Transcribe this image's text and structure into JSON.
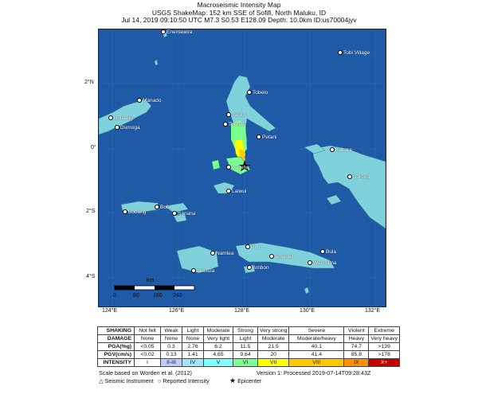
{
  "header": {
    "line1": "Macroseismic Intensity Map",
    "line2": "USGS ShakeMap: 152 km SSE of Sofifi, North Maluku, ID",
    "line3": "Jul 14, 2019 09:10:50 UTC M7.3 S0.53 E128.09 Depth: 10.0km ID:us70004jyv"
  },
  "colors": {
    "ocean": "#1e5aa6",
    "land": "#7fd1db",
    "mmi_I": "#ffffff",
    "mmi_II_III": "#bfccff",
    "mmi_IV": "#a0e6ff",
    "mmi_V": "#80ffff",
    "mmi_VI": "#7aff93",
    "mmi_VII": "#ffff00",
    "mmi_VIII": "#ffc800",
    "mmi_IX": "#ff9100",
    "mmi_X": "#c80000"
  },
  "map": {
    "cities": [
      {
        "name": "Enemawira"
      },
      {
        "name": "Tobi Village"
      },
      {
        "name": "Manado"
      },
      {
        "name": "Bolaang"
      },
      {
        "name": "Dumoga"
      },
      {
        "name": "Tobelo"
      },
      {
        "name": "Jailolo"
      },
      {
        "name": "Ternate"
      },
      {
        "name": "Petani"
      },
      {
        "name": "Kabare"
      },
      {
        "name": "Sorong"
      },
      {
        "name": "Labuha"
      },
      {
        "name": "Laiwui"
      },
      {
        "name": "Bobong"
      },
      {
        "name": "Bofa"
      },
      {
        "name": "Sanana"
      },
      {
        "name": "Piru"
      },
      {
        "name": "Namlea"
      },
      {
        "name": "Amahai"
      },
      {
        "name": "Bula"
      },
      {
        "name": "Ambon"
      },
      {
        "name": "Werinama"
      },
      {
        "name": "Leksula"
      }
    ],
    "lat_labels": [
      "2°N",
      "0°",
      "2°S",
      "4°S"
    ],
    "lon_labels": [
      "124°E",
      "126°E",
      "128°E",
      "130°E",
      "132°E"
    ],
    "scale_unit": "km",
    "scale_ticks": [
      "0",
      "80",
      "160",
      "240"
    ]
  },
  "legend_table": {
    "rows": [
      {
        "label": "SHAKING",
        "cells": [
          "Not felt",
          "Weak",
          "Light",
          "Moderate",
          "Strong",
          "Very strong",
          "Severe",
          "Violent",
          "Extreme"
        ]
      },
      {
        "label": "DAMAGE",
        "cells": [
          "None",
          "None",
          "None",
          "Very light",
          "Light",
          "Moderate",
          "Moderate/heavy",
          "Heavy",
          "Very heavy"
        ]
      },
      {
        "label": "PGA(%g)",
        "cells": [
          "<0.05",
          "0.3",
          "2.76",
          "6.2",
          "11.5",
          "21.5",
          "40.1",
          "74.7",
          ">139"
        ]
      },
      {
        "label": "PGV(cm/s)",
        "cells": [
          "<0.02",
          "0.13",
          "1.41",
          "4.65",
          "9.64",
          "20",
          "41.4",
          "85.8",
          ">178"
        ]
      },
      {
        "label": "INTENSITY",
        "cells": [
          "I",
          "II-III",
          "IV",
          "V",
          "VI",
          "VII",
          "VIII",
          "IX",
          "X+"
        ]
      }
    ]
  },
  "footer": {
    "scale_note": "Scale based on Worden et al. (2012)",
    "version": "Version 1: Processed 2019-07-14T09:28:43Z",
    "legend_seismic": "Seismic Instrument",
    "legend_reported": "Reported Intensity",
    "legend_epicenter": "Epicenter"
  }
}
